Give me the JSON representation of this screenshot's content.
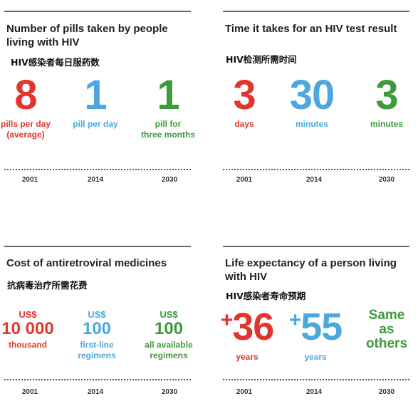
{
  "panels": [
    {
      "title": "Number of pills taken by people living with HIV",
      "title_cn": "HIV感染者每日服药数",
      "stats": [
        {
          "value": "8",
          "label_lines": [
            "pills per day",
            "(average)"
          ],
          "color": "#e2352f"
        },
        {
          "value": "1",
          "label_lines": [
            "pill per day"
          ],
          "color": "#4aa8df"
        },
        {
          "value": "1",
          "label_lines": [
            "pill for",
            "three months"
          ],
          "color": "#3e9a3c"
        }
      ],
      "years": [
        "2001",
        "2014",
        "2030"
      ]
    },
    {
      "title": "Time it takes for an HIV test result",
      "title_cn": "HIV检测所需时间",
      "stats": [
        {
          "value": "3",
          "label_lines": [
            "days"
          ],
          "color": "#e2352f"
        },
        {
          "value": "30",
          "label_lines": [
            "minutes"
          ],
          "color": "#4aa8df"
        },
        {
          "value": "3",
          "label_lines": [
            "minutes"
          ],
          "color": "#3e9a3c"
        }
      ],
      "years": [
        "2001",
        "2014",
        "2030"
      ]
    },
    {
      "title": "Cost of antiretroviral medicines",
      "title_cn": "抗病毒治疗所需花费",
      "stats": [
        {
          "currency": "US$",
          "value": "10 000",
          "label_lines": [
            "thousand"
          ],
          "color": "#e2352f"
        },
        {
          "currency": "US$",
          "value": "100",
          "label_lines": [
            "first-line",
            "regimens"
          ],
          "color": "#4aa8df"
        },
        {
          "currency": "US$",
          "value": "100",
          "label_lines": [
            "all available",
            "regimens"
          ],
          "color": "#3e9a3c"
        }
      ],
      "years": [
        "2001",
        "2014",
        "2030"
      ]
    },
    {
      "title": "Life expectancy of a person living with HIV",
      "title_cn": "HIV感染者寿命预期",
      "stats": [
        {
          "prefix": "+",
          "value": "36",
          "label_lines": [
            "years"
          ],
          "color": "#e2352f"
        },
        {
          "prefix": "+",
          "value": "55",
          "label_lines": [
            "years"
          ],
          "color": "#4aa8df"
        },
        {
          "value_lines": [
            "Same",
            "as",
            "others"
          ],
          "color": "#3e9a3c"
        }
      ],
      "years": [
        "2001",
        "2014",
        "2030"
      ]
    }
  ]
}
